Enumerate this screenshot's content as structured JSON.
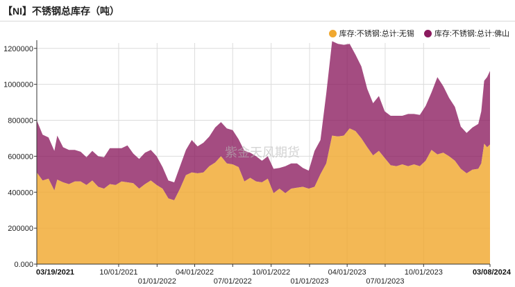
{
  "title": "【NI】不锈钢总库存（吨）",
  "legend": [
    {
      "label": "库存:不锈钢:总计:无锡",
      "color": "#f0a830"
    },
    {
      "label": "库存:不锈钢:总计:佛山",
      "color": "#8b1a5e"
    }
  ],
  "watermark": "紫金天风期货",
  "chart_data": {
    "type": "area",
    "stacked": true,
    "title": "【NI】不锈钢总库存（吨）",
    "ylim": [
      0,
      1230000
    ],
    "yticks": [
      0,
      200000,
      400000,
      600000,
      800000,
      1000000,
      1200000
    ],
    "ytick_labels": [
      "0.000",
      "200000",
      "400000",
      "600000",
      "800000",
      "1000000",
      "1200000"
    ],
    "xlim": [
      "2021-03-19",
      "2024-03-08"
    ],
    "xticks": [
      {
        "date": "2021-03-19",
        "label": "03/19/2021",
        "row": 0,
        "bold": true
      },
      {
        "date": "2021-10-01",
        "label": "10/01/2021",
        "row": 0,
        "bold": false
      },
      {
        "date": "2022-01-01",
        "label": "01/01/2022",
        "row": 1,
        "bold": false
      },
      {
        "date": "2022-04-01",
        "label": "04/01/2022",
        "row": 0,
        "bold": false
      },
      {
        "date": "2022-07-01",
        "label": "07/01/2022",
        "row": 1,
        "bold": false
      },
      {
        "date": "2022-10-01",
        "label": "10/01/2022",
        "row": 0,
        "bold": false
      },
      {
        "date": "2023-01-01",
        "label": "01/01/2023",
        "row": 1,
        "bold": false
      },
      {
        "date": "2023-04-01",
        "label": "04/01/2023",
        "row": 0,
        "bold": false
      },
      {
        "date": "2023-07-01",
        "label": "07/01/2023",
        "row": 1,
        "bold": false
      },
      {
        "date": "2023-10-01",
        "label": "10/01/2023",
        "row": 0,
        "bold": false
      },
      {
        "date": "2024-03-08",
        "label": "03/08/2024",
        "row": 0,
        "bold": true
      }
    ],
    "series": [
      {
        "name": "库存:不锈钢:总计:无锡",
        "color": "#f0a830",
        "points": [
          [
            "2021-03-19",
            510000
          ],
          [
            "2021-04-02",
            465000
          ],
          [
            "2021-04-16",
            475000
          ],
          [
            "2021-04-30",
            410000
          ],
          [
            "2021-05-07",
            470000
          ],
          [
            "2021-05-21",
            455000
          ],
          [
            "2021-06-04",
            445000
          ],
          [
            "2021-06-18",
            460000
          ],
          [
            "2021-07-02",
            460000
          ],
          [
            "2021-07-16",
            440000
          ],
          [
            "2021-07-30",
            465000
          ],
          [
            "2021-08-13",
            430000
          ],
          [
            "2021-08-27",
            420000
          ],
          [
            "2021-09-10",
            445000
          ],
          [
            "2021-09-24",
            440000
          ],
          [
            "2021-10-08",
            460000
          ],
          [
            "2021-10-22",
            455000
          ],
          [
            "2021-11-05",
            450000
          ],
          [
            "2021-11-19",
            420000
          ],
          [
            "2021-12-03",
            445000
          ],
          [
            "2021-12-17",
            465000
          ],
          [
            "2021-12-31",
            440000
          ],
          [
            "2022-01-14",
            420000
          ],
          [
            "2022-01-28",
            365000
          ],
          [
            "2022-02-11",
            355000
          ],
          [
            "2022-02-25",
            420000
          ],
          [
            "2022-03-11",
            495000
          ],
          [
            "2022-03-25",
            510000
          ],
          [
            "2022-04-08",
            505000
          ],
          [
            "2022-04-22",
            510000
          ],
          [
            "2022-05-06",
            545000
          ],
          [
            "2022-05-20",
            565000
          ],
          [
            "2022-06-03",
            600000
          ],
          [
            "2022-06-17",
            560000
          ],
          [
            "2022-07-01",
            555000
          ],
          [
            "2022-07-15",
            540000
          ],
          [
            "2022-07-29",
            460000
          ],
          [
            "2022-08-12",
            480000
          ],
          [
            "2022-08-26",
            460000
          ],
          [
            "2022-09-09",
            455000
          ],
          [
            "2022-09-23",
            475000
          ],
          [
            "2022-10-07",
            395000
          ],
          [
            "2022-10-21",
            420000
          ],
          [
            "2022-11-04",
            395000
          ],
          [
            "2022-11-18",
            420000
          ],
          [
            "2022-12-02",
            425000
          ],
          [
            "2022-12-16",
            430000
          ],
          [
            "2022-12-30",
            420000
          ],
          [
            "2023-01-13",
            430000
          ],
          [
            "2023-01-27",
            500000
          ],
          [
            "2023-02-10",
            560000
          ],
          [
            "2023-02-24",
            715000
          ],
          [
            "2023-03-10",
            710000
          ],
          [
            "2023-03-24",
            715000
          ],
          [
            "2023-04-07",
            755000
          ],
          [
            "2023-04-21",
            740000
          ],
          [
            "2023-05-05",
            700000
          ],
          [
            "2023-05-19",
            650000
          ],
          [
            "2023-06-02",
            605000
          ],
          [
            "2023-06-16",
            630000
          ],
          [
            "2023-06-30",
            590000
          ],
          [
            "2023-07-14",
            550000
          ],
          [
            "2023-07-28",
            545000
          ],
          [
            "2023-08-11",
            555000
          ],
          [
            "2023-08-25",
            545000
          ],
          [
            "2023-09-08",
            555000
          ],
          [
            "2023-09-22",
            545000
          ],
          [
            "2023-10-06",
            575000
          ],
          [
            "2023-10-20",
            635000
          ],
          [
            "2023-11-03",
            610000
          ],
          [
            "2023-11-17",
            620000
          ],
          [
            "2023-12-01",
            600000
          ],
          [
            "2023-12-15",
            575000
          ],
          [
            "2023-12-29",
            530000
          ],
          [
            "2024-01-12",
            505000
          ],
          [
            "2024-01-26",
            525000
          ],
          [
            "2024-02-09",
            530000
          ],
          [
            "2024-02-16",
            560000
          ],
          [
            "2024-02-23",
            670000
          ],
          [
            "2024-03-01",
            650000
          ],
          [
            "2024-03-08",
            665000
          ]
        ]
      },
      {
        "name": "库存:不锈钢:总计:佛山",
        "color": "#8b1a5e",
        "points": [
          [
            "2021-03-19",
            290000
          ],
          [
            "2021-04-02",
            255000
          ],
          [
            "2021-04-16",
            230000
          ],
          [
            "2021-04-30",
            220000
          ],
          [
            "2021-05-07",
            245000
          ],
          [
            "2021-05-21",
            195000
          ],
          [
            "2021-06-04",
            190000
          ],
          [
            "2021-06-18",
            175000
          ],
          [
            "2021-07-02",
            165000
          ],
          [
            "2021-07-16",
            155000
          ],
          [
            "2021-07-30",
            165000
          ],
          [
            "2021-08-13",
            170000
          ],
          [
            "2021-08-27",
            175000
          ],
          [
            "2021-09-10",
            200000
          ],
          [
            "2021-09-24",
            205000
          ],
          [
            "2021-10-08",
            185000
          ],
          [
            "2021-10-22",
            205000
          ],
          [
            "2021-11-05",
            165000
          ],
          [
            "2021-11-19",
            165000
          ],
          [
            "2021-12-03",
            175000
          ],
          [
            "2021-12-17",
            170000
          ],
          [
            "2021-12-31",
            160000
          ],
          [
            "2022-01-14",
            120000
          ],
          [
            "2022-01-28",
            100000
          ],
          [
            "2022-02-11",
            100000
          ],
          [
            "2022-02-25",
            125000
          ],
          [
            "2022-03-11",
            140000
          ],
          [
            "2022-03-25",
            180000
          ],
          [
            "2022-04-08",
            150000
          ],
          [
            "2022-04-22",
            165000
          ],
          [
            "2022-05-06",
            165000
          ],
          [
            "2022-05-20",
            195000
          ],
          [
            "2022-06-03",
            190000
          ],
          [
            "2022-06-17",
            195000
          ],
          [
            "2022-07-01",
            190000
          ],
          [
            "2022-07-15",
            155000
          ],
          [
            "2022-07-29",
            170000
          ],
          [
            "2022-08-12",
            140000
          ],
          [
            "2022-08-26",
            140000
          ],
          [
            "2022-09-09",
            120000
          ],
          [
            "2022-09-23",
            125000
          ],
          [
            "2022-10-07",
            135000
          ],
          [
            "2022-10-21",
            115000
          ],
          [
            "2022-11-04",
            150000
          ],
          [
            "2022-11-18",
            140000
          ],
          [
            "2022-12-02",
            135000
          ],
          [
            "2022-12-16",
            105000
          ],
          [
            "2022-12-30",
            100000
          ],
          [
            "2023-01-13",
            200000
          ],
          [
            "2023-01-27",
            190000
          ],
          [
            "2023-02-10",
            390000
          ],
          [
            "2023-02-24",
            525000
          ],
          [
            "2023-03-10",
            515000
          ],
          [
            "2023-03-24",
            505000
          ],
          [
            "2023-04-07",
            470000
          ],
          [
            "2023-04-21",
            425000
          ],
          [
            "2023-05-05",
            400000
          ],
          [
            "2023-05-19",
            325000
          ],
          [
            "2023-06-02",
            290000
          ],
          [
            "2023-06-16",
            305000
          ],
          [
            "2023-06-30",
            260000
          ],
          [
            "2023-07-14",
            275000
          ],
          [
            "2023-07-28",
            280000
          ],
          [
            "2023-08-11",
            270000
          ],
          [
            "2023-08-25",
            290000
          ],
          [
            "2023-09-08",
            280000
          ],
          [
            "2023-09-22",
            285000
          ],
          [
            "2023-10-06",
            305000
          ],
          [
            "2023-10-20",
            320000
          ],
          [
            "2023-11-03",
            430000
          ],
          [
            "2023-11-17",
            370000
          ],
          [
            "2023-12-01",
            325000
          ],
          [
            "2023-12-15",
            300000
          ],
          [
            "2023-12-29",
            235000
          ],
          [
            "2024-01-12",
            225000
          ],
          [
            "2024-01-26",
            235000
          ],
          [
            "2024-02-09",
            250000
          ],
          [
            "2024-02-16",
            290000
          ],
          [
            "2024-02-23",
            350000
          ],
          [
            "2024-03-01",
            390000
          ],
          [
            "2024-03-08",
            410000
          ]
        ]
      }
    ]
  }
}
